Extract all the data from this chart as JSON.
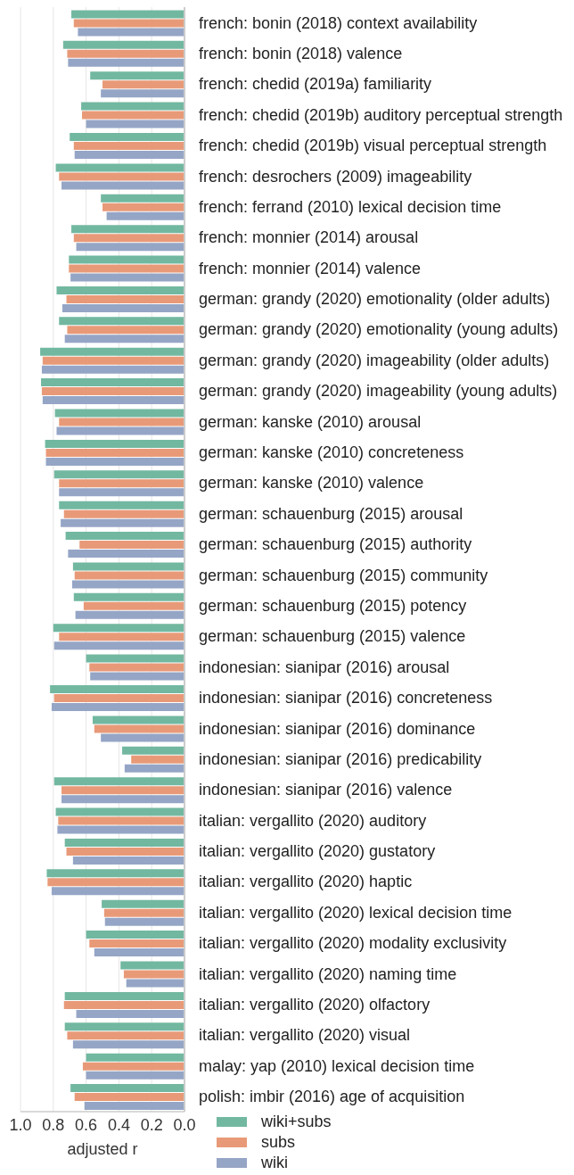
{
  "chart_data": {
    "type": "bar",
    "orientation": "horizontal",
    "xlabel": "adjusted r",
    "xlim": [
      1.0,
      0.0
    ],
    "xticks": [
      {
        "value": 1,
        "label": "1.0"
      },
      {
        "value": 0.8,
        "label": "0.8"
      },
      {
        "value": 0.6,
        "label": "0.6"
      },
      {
        "value": 0.4,
        "label": "0.4"
      },
      {
        "value": 0.2,
        "label": "0.2"
      },
      {
        "value": 0,
        "label": "0.0"
      }
    ],
    "grid": "x",
    "legend": "bottom right",
    "categories": [
      "french: bonin (2018) context availability",
      "french: bonin (2018) valence",
      "french: chedid (2019a) familiarity",
      "french: chedid (2019b) auditory perceptual strength",
      "french: chedid (2019b) visual perceptual strength",
      "french: desrochers (2009) imageability",
      "french: ferrand (2010) lexical decision time",
      "french: monnier (2014) arousal",
      "french: monnier (2014) valence",
      "german: grandy (2020) emotionality (older adults)",
      "german: grandy (2020) emotionality (young adults)",
      "german: grandy (2020) imageability (older adults)",
      "german: grandy (2020) imageability (young adults)",
      "german: kanske (2010) arousal",
      "german: kanske (2010) concreteness",
      "german: kanske (2010) valence",
      "german: schauenburg (2015) arousal",
      "german: schauenburg (2015) authority",
      "german: schauenburg (2015) community",
      "german: schauenburg (2015) potency",
      "german: schauenburg (2015) valence",
      "indonesian: sianipar (2016) arousal",
      "indonesian: sianipar (2016) concreteness",
      "indonesian: sianipar (2016) dominance",
      "indonesian: sianipar (2016) predicability",
      "indonesian: sianipar (2016) valence",
      "italian: vergallito (2020) auditory",
      "italian: vergallito (2020) gustatory",
      "italian: vergallito (2020) haptic",
      "italian: vergallito (2020) lexical decision time",
      "italian: vergallito (2020) modality exclusivity",
      "italian: vergallito (2020) naming time",
      "italian: vergallito (2020) olfactory",
      "italian: vergallito (2020) visual",
      "malay: yap (2010) lexical decision time",
      "polish: imbir (2016) age of acquisition"
    ],
    "series": [
      {
        "name": "wiki+subs",
        "color": "#72b8a0",
        "values": [
          0.69,
          0.74,
          0.575,
          0.63,
          0.7,
          0.785,
          0.51,
          0.69,
          0.705,
          0.78,
          0.765,
          0.88,
          0.875,
          0.79,
          0.85,
          0.795,
          0.765,
          0.725,
          0.68,
          0.675,
          0.8,
          0.6,
          0.82,
          0.56,
          0.38,
          0.795,
          0.785,
          0.73,
          0.84,
          0.505,
          0.6,
          0.39,
          0.73,
          0.73,
          0.6,
          0.695
        ]
      },
      {
        "name": "subs",
        "color": "#e89a78",
        "values": [
          0.675,
          0.715,
          0.5,
          0.625,
          0.675,
          0.765,
          0.5,
          0.675,
          0.705,
          0.72,
          0.715,
          0.865,
          0.87,
          0.765,
          0.845,
          0.765,
          0.735,
          0.64,
          0.67,
          0.615,
          0.765,
          0.58,
          0.795,
          0.55,
          0.325,
          0.75,
          0.77,
          0.72,
          0.835,
          0.49,
          0.58,
          0.37,
          0.735,
          0.715,
          0.62,
          0.67
        ]
      },
      {
        "name": "wiki",
        "color": "#95a5c6",
        "values": [
          0.65,
          0.71,
          0.51,
          0.6,
          0.67,
          0.75,
          0.475,
          0.66,
          0.695,
          0.745,
          0.73,
          0.87,
          0.865,
          0.78,
          0.845,
          0.765,
          0.755,
          0.71,
          0.685,
          0.665,
          0.795,
          0.575,
          0.81,
          0.51,
          0.365,
          0.75,
          0.775,
          0.68,
          0.81,
          0.485,
          0.55,
          0.355,
          0.66,
          0.68,
          0.6,
          0.61
        ]
      }
    ]
  }
}
